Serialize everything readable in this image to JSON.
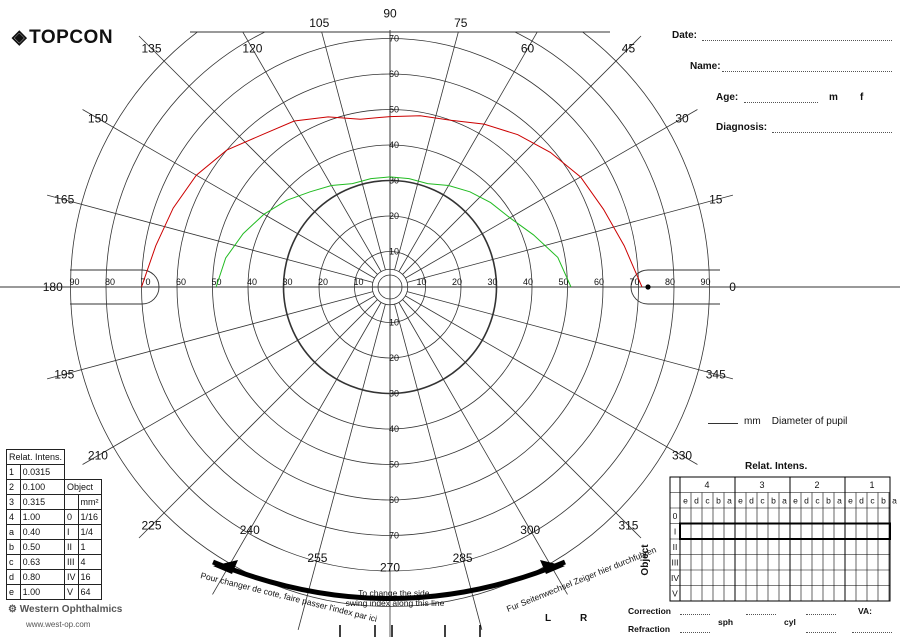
{
  "brand": {
    "logo_text": "TOPCON",
    "footer_brand": "Western Ophthalmics",
    "footer_url": "www.west-op.com"
  },
  "form": {
    "date_label": "Date:",
    "name_label": "Name:",
    "age_label": "Age:",
    "age_m": "m",
    "age_f": "f",
    "diagnosis_label": "Diagnosis:",
    "pupil_unit": "mm",
    "pupil_label": "Diameter of pupil"
  },
  "meridian_labels": [
    "0",
    "15",
    "30",
    "45",
    "60",
    "75",
    "90",
    "105",
    "120",
    "135",
    "150",
    "165",
    "180",
    "195",
    "210",
    "225",
    "240",
    "255",
    "270",
    "285",
    "300",
    "315",
    "330",
    "345"
  ],
  "ring_labels": [
    "10",
    "20",
    "30",
    "40",
    "50",
    "60",
    "70",
    "80",
    "90"
  ],
  "swing_instructions": {
    "french": "Pour changer de cote, faire passer l'index par ici",
    "english_1": "To change the side,",
    "english_2": "swing index along this line",
    "german": "Fur Seitenwechsel Zeiger hier durchfuhren",
    "left": "L",
    "right": "R"
  },
  "intensity_table": {
    "header": "Relat. Intens.",
    "rows": [
      {
        "k": "1",
        "v": "0.0315"
      },
      {
        "k": "2",
        "v": "0.100"
      },
      {
        "k": "3",
        "v": "0.315"
      },
      {
        "k": "4",
        "v": "1.00"
      },
      {
        "k": "a",
        "v": "0.40"
      },
      {
        "k": "b",
        "v": "0.50"
      },
      {
        "k": "c",
        "v": "0.63"
      },
      {
        "k": "d",
        "v": "0.80"
      },
      {
        "k": "e",
        "v": "1.00"
      }
    ],
    "object_header": "Object",
    "object_unit": "mm²",
    "objects": [
      {
        "k": "0",
        "v": "1/16"
      },
      {
        "k": "I",
        "v": "1/4"
      },
      {
        "k": "II",
        "v": "1"
      },
      {
        "k": "III",
        "v": "4"
      },
      {
        "k": "IV",
        "v": "16"
      },
      {
        "k": "V",
        "v": "64"
      }
    ]
  },
  "relat_grid": {
    "title": "Relat. Intens.",
    "groups": [
      "4",
      "3",
      "2",
      "1"
    ],
    "subcols": [
      "e",
      "d",
      "c",
      "b",
      "a"
    ],
    "object_label": "Object",
    "rows": [
      "0",
      "I",
      "II",
      "III",
      "IV",
      "V"
    ]
  },
  "bottom_form": {
    "correction": "Correction",
    "refraction": "Refraction",
    "sph": "sph",
    "cyl": "cyl",
    "va": "VA:"
  },
  "isopters": {
    "colors": {
      "outer": "#cc0000",
      "inner": "#22bb22"
    },
    "outer_red": [
      {
        "meridian": 0,
        "radius": 71
      },
      {
        "meridian": 10,
        "radius": 67
      },
      {
        "meridian": 20,
        "radius": 64
      },
      {
        "meridian": 30,
        "radius": 62
      },
      {
        "meridian": 40,
        "radius": 59
      },
      {
        "meridian": 50,
        "radius": 56
      },
      {
        "meridian": 60,
        "radius": 53
      },
      {
        "meridian": 70,
        "radius": 50
      },
      {
        "meridian": 80,
        "radius": 49
      },
      {
        "meridian": 90,
        "radius": 48
      },
      {
        "meridian": 100,
        "radius": 48
      },
      {
        "meridian": 110,
        "radius": 51
      },
      {
        "meridian": 120,
        "radius": 54
      },
      {
        "meridian": 130,
        "radius": 56
      },
      {
        "meridian": 140,
        "radius": 60
      },
      {
        "meridian": 150,
        "radius": 63
      },
      {
        "meridian": 160,
        "radius": 65
      },
      {
        "meridian": 170,
        "radius": 67
      },
      {
        "meridian": 180,
        "radius": 70
      }
    ],
    "inner_green": [
      {
        "meridian": 0,
        "radius": 51
      },
      {
        "meridian": 10,
        "radius": 48
      },
      {
        "meridian": 20,
        "radius": 43
      },
      {
        "meridian": 30,
        "radius": 39
      },
      {
        "meridian": 40,
        "radius": 37
      },
      {
        "meridian": 50,
        "radius": 35
      },
      {
        "meridian": 60,
        "radius": 33
      },
      {
        "meridian": 70,
        "radius": 31
      },
      {
        "meridian": 80,
        "radius": 31
      },
      {
        "meridian": 90,
        "radius": 31
      },
      {
        "meridian": 100,
        "radius": 31
      },
      {
        "meridian": 110,
        "radius": 31
      },
      {
        "meridian": 120,
        "radius": 33
      },
      {
        "meridian": 130,
        "radius": 35
      },
      {
        "meridian": 140,
        "radius": 38
      },
      {
        "meridian": 150,
        "radius": 41
      },
      {
        "meridian": 160,
        "radius": 44
      },
      {
        "meridian": 170,
        "radius": 47
      },
      {
        "meridian": 180,
        "radius": 49
      }
    ]
  }
}
